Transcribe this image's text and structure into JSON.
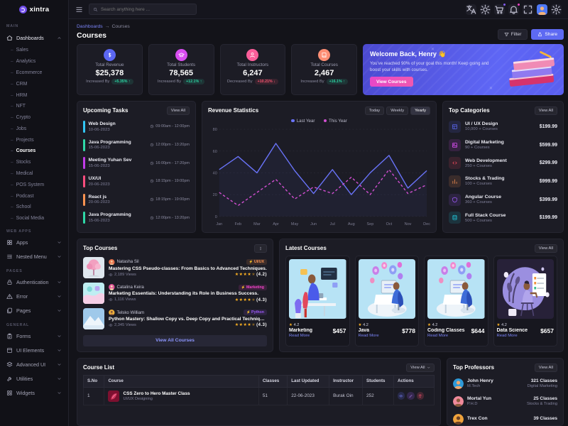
{
  "brand": {
    "name": "xintra"
  },
  "topbar": {
    "search_placeholder": "Search anything here ..."
  },
  "sidebar": {
    "sections": [
      {
        "label": "MAIN",
        "items": [
          {
            "label": "Dashboards",
            "icon": "home",
            "expanded": true,
            "active_child": "Courses",
            "children": [
              "Sales",
              "Analytics",
              "Ecommerce",
              "CRM",
              "HRM",
              "NFT",
              "Crypto",
              "Jobs",
              "Projects",
              "Courses",
              "Stocks",
              "Medical",
              "POS System",
              "Podcast",
              "School",
              "Social Media"
            ]
          }
        ]
      },
      {
        "label": "WEB APPS",
        "items": [
          {
            "label": "Apps",
            "icon": "grid"
          },
          {
            "label": "Nested Menu",
            "icon": "nested"
          }
        ]
      },
      {
        "label": "PAGES",
        "items": [
          {
            "label": "Authentication",
            "icon": "lock"
          },
          {
            "label": "Error",
            "icon": "warning"
          },
          {
            "label": "Pages",
            "icon": "pages"
          }
        ]
      },
      {
        "label": "GENERAL",
        "items": [
          {
            "label": "Forms",
            "icon": "clipboard"
          },
          {
            "label": "UI Elements",
            "icon": "box"
          },
          {
            "label": "Advanced UI",
            "icon": "layers"
          },
          {
            "label": "Utilities",
            "icon": "tool"
          },
          {
            "label": "Widgets",
            "icon": "widget"
          }
        ]
      }
    ]
  },
  "page": {
    "breadcrumb_parent": "Dashboards",
    "breadcrumb_sep": "→",
    "breadcrumb_current": "Courses",
    "title": "Courses",
    "filter_label": "Filter",
    "share_label": "Share"
  },
  "stats": [
    {
      "label": "Total Revenue",
      "value": "$25,378",
      "trend": "Increased By",
      "badge": "+5.35%",
      "dir": "up",
      "icon": "dollar",
      "color": "#5b67f2"
    },
    {
      "label": "Total Students",
      "value": "78,565",
      "trend": "Increased By",
      "badge": "+12.1%",
      "dir": "up",
      "icon": "cap",
      "color": "#d84df0"
    },
    {
      "label": "Total Instructors",
      "value": "6,247",
      "trend": "Decreased By",
      "badge": "+10.21%",
      "dir": "down",
      "icon": "user",
      "color": "#fb5e9a"
    },
    {
      "label": "Total Courses",
      "value": "2,467",
      "trend": "Increased By",
      "badge": "+16.1%",
      "dir": "up",
      "icon": "book",
      "color": "#fd8e74"
    }
  ],
  "welcome": {
    "title": "Welcome Back, Henry",
    "emoji": "👋",
    "message": "You've reached 90% of your goal this month! Keep going and boost your skills with courses.",
    "button": "View Courses"
  },
  "tasks": {
    "title": "Upcoming Tasks",
    "view_all": "View All",
    "items": [
      {
        "name": "Web Design",
        "date": "10-06-2023",
        "time": "09:00am - 12:00pm",
        "color": "#32c6f4"
      },
      {
        "name": "Java Programming",
        "date": "15-06-2023",
        "time": "12:00pm - 13:20pm",
        "color": "#2fd8a7"
      },
      {
        "name": "Meeting Yuhan Sev",
        "date": "15-06-2023",
        "time": "16:00pm - 17:20pm",
        "color": "#c13ce8"
      },
      {
        "name": "UX/UI",
        "date": "20-06-2023",
        "time": "18:15pm - 19:00pm",
        "color": "#fb4d7e"
      },
      {
        "name": "React js",
        "date": "20-06-2023",
        "time": "18:15pm - 19:00pm",
        "color": "#fd9351"
      },
      {
        "name": "Java Programming",
        "date": "15-06-2023",
        "time": "12:00pm - 13:20pm",
        "color": "#2fd8a7"
      }
    ]
  },
  "revenue": {
    "title": "Revenue Statistics",
    "ranges": [
      "Today",
      "Weekly",
      "Yearly"
    ],
    "active_range": "Yearly"
  },
  "chart_data": {
    "type": "line",
    "x": [
      "Jan",
      "Feb",
      "Mar",
      "Apr",
      "May",
      "Jun",
      "Jul",
      "Aug",
      "Sep",
      "Oct",
      "Nov",
      "Dec"
    ],
    "series": [
      {
        "name": "Last Year",
        "values": [
          43,
          55,
          40,
          67,
          42,
          21,
          43,
          20,
          40,
          56,
          26,
          42
        ],
        "color": "#6973f8",
        "style": "solid"
      },
      {
        "name": "This Year",
        "values": [
          22,
          10,
          22,
          34,
          16,
          27,
          21,
          36,
          20,
          43,
          21,
          29
        ],
        "color": "#d24fd1",
        "style": "dashed"
      }
    ],
    "ylim": [
      0,
      80
    ],
    "yticks": [
      0,
      20,
      40,
      60,
      80
    ],
    "grid": true,
    "legend_position": "top"
  },
  "categories": {
    "title": "Top Categories",
    "view_all": "View All",
    "items": [
      {
        "name": "UI / UX Design",
        "count": "10,000 + Courses",
        "price": "$199.99",
        "icon": "layout",
        "color": "#5b67f2"
      },
      {
        "name": "Digital Marketing",
        "count": "90 + Courses",
        "price": "$599.99",
        "icon": "image",
        "color": "#d84df0"
      },
      {
        "name": "Web Development",
        "count": "250 + Courses",
        "price": "$299.99",
        "icon": "code",
        "color": "#fb4d5e"
      },
      {
        "name": "Stocks & Trading",
        "count": "100 + Courses",
        "price": "$999.99",
        "icon": "chart",
        "color": "#fd9351"
      },
      {
        "name": "Angular Course",
        "count": "360 + Courses",
        "price": "$399.99",
        "icon": "shield",
        "color": "#9b59f6"
      },
      {
        "name": "Full Stack Course",
        "count": "500 + Courses",
        "price": "$199.99",
        "icon": "database",
        "color": "#21c7db"
      }
    ]
  },
  "top_courses": {
    "title": "Top Courses",
    "footer": "View All Courses",
    "items": [
      {
        "author": "Natasha Sil",
        "course": "Mastering CSS Pseudo-classes: From Basics to Advanced Techniques.",
        "views": "2,189 Views",
        "rating": "(4.2)",
        "badge": "UI/UX",
        "badge_color": "#fd9351",
        "thumb": "tree",
        "av1": "#e8734d",
        "av2": "#f6c79a"
      },
      {
        "author": "Catalina Keira",
        "course": "Marketing Essentials: Understanding its Role in Business Success.",
        "views": "1,116 Views",
        "rating": "(4.3)",
        "badge": "Marketing",
        "badge_color": "#f543c9",
        "thumb": "pastel",
        "av1": "#e0569a",
        "av2": "#f6d3ae"
      },
      {
        "author": "Telsko William",
        "course": "Python Mastery: Shallow Copy vs. Deep Copy and Practical Techniques.",
        "views": "2,345 Views",
        "rating": "(4.3)",
        "badge": "Python",
        "badge_color": "#9b59f6",
        "thumb": "mountain",
        "av1": "#eeb03c",
        "av2": "#8a5a3b"
      }
    ]
  },
  "latest": {
    "title": "Latest Courses",
    "view_all": "View All",
    "cards": [
      {
        "name": "Marketing",
        "rating": "4.2",
        "price": "$457",
        "link": "Read More",
        "variant": "desk"
      },
      {
        "name": "Java",
        "rating": "4.2",
        "price": "$778",
        "link": "Read More",
        "variant": "iso"
      },
      {
        "name": "Coding Classes",
        "rating": "4.2",
        "price": "$644",
        "link": "Read More",
        "variant": "iso"
      },
      {
        "name": "Data Science",
        "rating": "4.2",
        "price": "$657",
        "link": "Read More",
        "variant": "research"
      }
    ]
  },
  "course_list": {
    "title": "Course List",
    "view_all": "View All",
    "headers": [
      "S.No",
      "Course",
      "Classes",
      "Last Updated",
      "Instructor",
      "Students",
      "Actions"
    ],
    "rows": [
      {
        "sno": "1",
        "course": "CSS Zero to Hero Master Class",
        "category": "UI/UX Designing",
        "classes": "51",
        "updated": "22-06-2023",
        "instructor": "Burak Oin",
        "students": "252"
      }
    ]
  },
  "professors": {
    "title": "Top Professors",
    "view_all": "View All",
    "items": [
      {
        "name": "John Henry",
        "degree": "M.Tech",
        "classes": "321 Classes",
        "field": "Digital Marketing",
        "av1": "#2f9ad8",
        "av2": "#f2a96e"
      },
      {
        "name": "Mortal Yun",
        "degree": "P.H.D",
        "classes": "25 Classes",
        "field": "Stocks & Trading",
        "av1": "#f08a9b",
        "av2": "#8a5a3b"
      },
      {
        "name": "Trex Con",
        "degree": "",
        "classes": "39 Classes",
        "field": "",
        "av1": "#f0a33c",
        "av2": "#6b4226"
      }
    ]
  }
}
